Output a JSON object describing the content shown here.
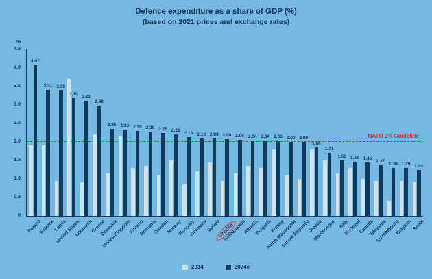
{
  "title": "Defence expenditure as a share of GDP (%)",
  "subtitle": "(based on 2021 prices and exchange rates)",
  "y_axis": {
    "unit_label": "%",
    "ticks": [
      "4.5",
      "4.0",
      "3.5",
      "3.0",
      "2.5",
      "2.0",
      "1.5",
      "1.0",
      "0.5",
      "0"
    ]
  },
  "guideline": {
    "label": "NATO 2% Guideline",
    "value": 2.0,
    "color": "#e8252b",
    "style": "dashed"
  },
  "highlight": {
    "country": "Czechia",
    "shape": "red-ellipse",
    "color": "#e8252b"
  },
  "legend": [
    {
      "label": "2014",
      "color": "#cfe3ee"
    },
    {
      "label": "2024e",
      "color": "#0e3a5e"
    }
  ],
  "colors": {
    "background": "#75b9e3",
    "bar_2014": "#cfe3ee",
    "bar_2024e": "#0e3a5e",
    "text": "#0d3156",
    "guideline_red": "#e8252b"
  },
  "chart_data": {
    "type": "bar",
    "title": "Defence expenditure as a share of GDP (%)",
    "subtitle": "(based on 2021 prices and exchange rates)",
    "xlabel": "",
    "ylabel": "%",
    "ylim": [
      0,
      4.5
    ],
    "grid": false,
    "legend_position": "bottom",
    "annotation": "NATO 2% Guideline at y=2.0 (red dashed line); Czechia label circled in red",
    "categories": [
      "Poland",
      "Estonia",
      "Latvia",
      "United States",
      "Lithuania",
      "Greece",
      "Denmark",
      "United Kingdom",
      "Finland",
      "Romania",
      "Sweden",
      "Norway",
      "Hungary",
      "Germany",
      "Turkey",
      "Czechia",
      "Netherlands",
      "Albania",
      "Bulgaria",
      "France",
      "North Macedonia",
      "Slovak Republic",
      "Croatia",
      "Montenegro",
      "Italy",
      "Portugal",
      "Canada",
      "Slovenia",
      "Luxembourg",
      "Belgium",
      "Spain"
    ],
    "series": [
      {
        "name": "2014",
        "labeled": false,
        "values": [
          1.9,
          1.9,
          0.95,
          3.7,
          0.9,
          2.2,
          1.15,
          2.15,
          1.3,
          1.35,
          1.1,
          1.5,
          0.85,
          1.2,
          1.45,
          0.95,
          1.15,
          1.35,
          1.3,
          1.8,
          1.1,
          1.0,
          1.8,
          1.5,
          1.15,
          1.3,
          1.0,
          0.95,
          0.4,
          0.95,
          0.9
        ]
      },
      {
        "name": "2024e",
        "labeled": true,
        "values": [
          4.07,
          3.41,
          3.39,
          3.19,
          3.11,
          2.99,
          2.35,
          2.33,
          2.3,
          2.28,
          2.25,
          2.21,
          2.13,
          2.1,
          2.09,
          2.08,
          2.06,
          2.04,
          2.04,
          2.03,
          2.0,
          2.0,
          1.86,
          1.71,
          1.5,
          1.46,
          1.45,
          1.37,
          1.3,
          1.29,
          1.24
        ]
      }
    ]
  }
}
